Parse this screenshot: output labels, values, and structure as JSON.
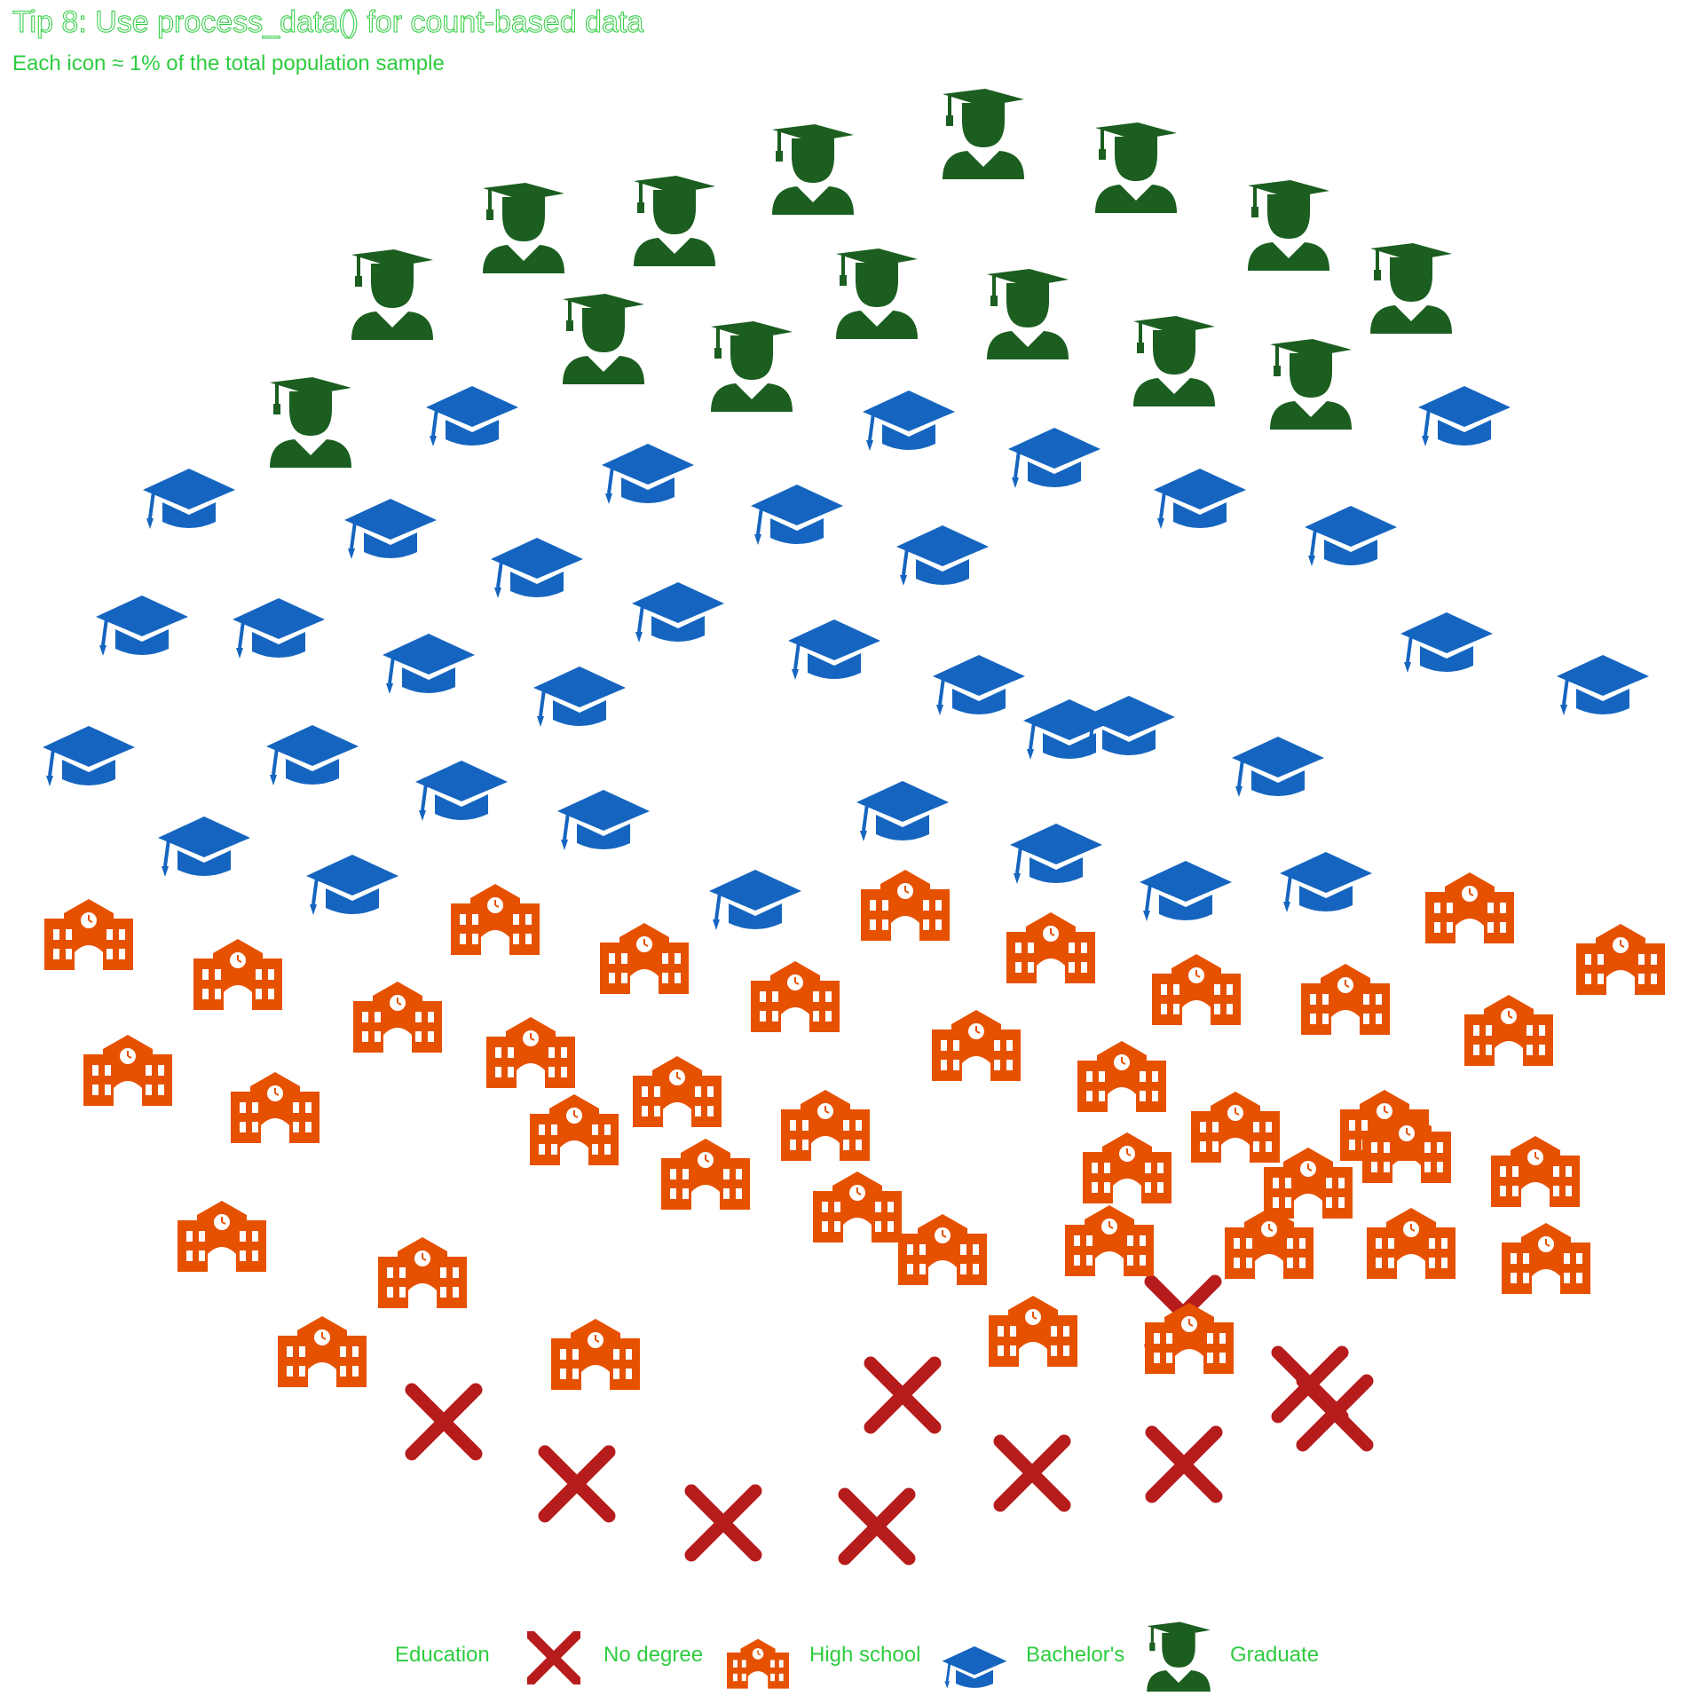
{
  "header": {
    "title": "Tip 8: Use process_data() for count-based data",
    "subtitle": "Each icon ≈ 1% of the total population sample"
  },
  "legend": {
    "title": "Education",
    "items": [
      {
        "label": "No degree",
        "icon": "x-mark-icon",
        "color": "#b71c1c"
      },
      {
        "label": "High school",
        "icon": "school-building-icon",
        "color": "#e65100"
      },
      {
        "label": "Bachelor's",
        "icon": "mortarboard-icon",
        "color": "#1565c0"
      },
      {
        "label": "Graduate",
        "icon": "graduate-person-icon",
        "color": "#1b5e20"
      }
    ]
  },
  "chart_data": {
    "type": "icon-scatter",
    "title": "Tip 8: Use process_data() for count-based data",
    "subtitle": "Each icon ≈ 1% of the total population sample",
    "unit": "1 icon ≈ 1% of total population sample",
    "categories": [
      "No degree",
      "High school",
      "Bachelor's",
      "Graduate"
    ],
    "values": [
      10,
      40,
      35,
      15
    ],
    "colors": {
      "No degree": "#b71c1c",
      "High school": "#e65100",
      "Bachelor's": "#1565c0",
      "Graduate": "#1b5e20"
    },
    "legend_position": "bottom",
    "axes": "none",
    "grid": false
  }
}
